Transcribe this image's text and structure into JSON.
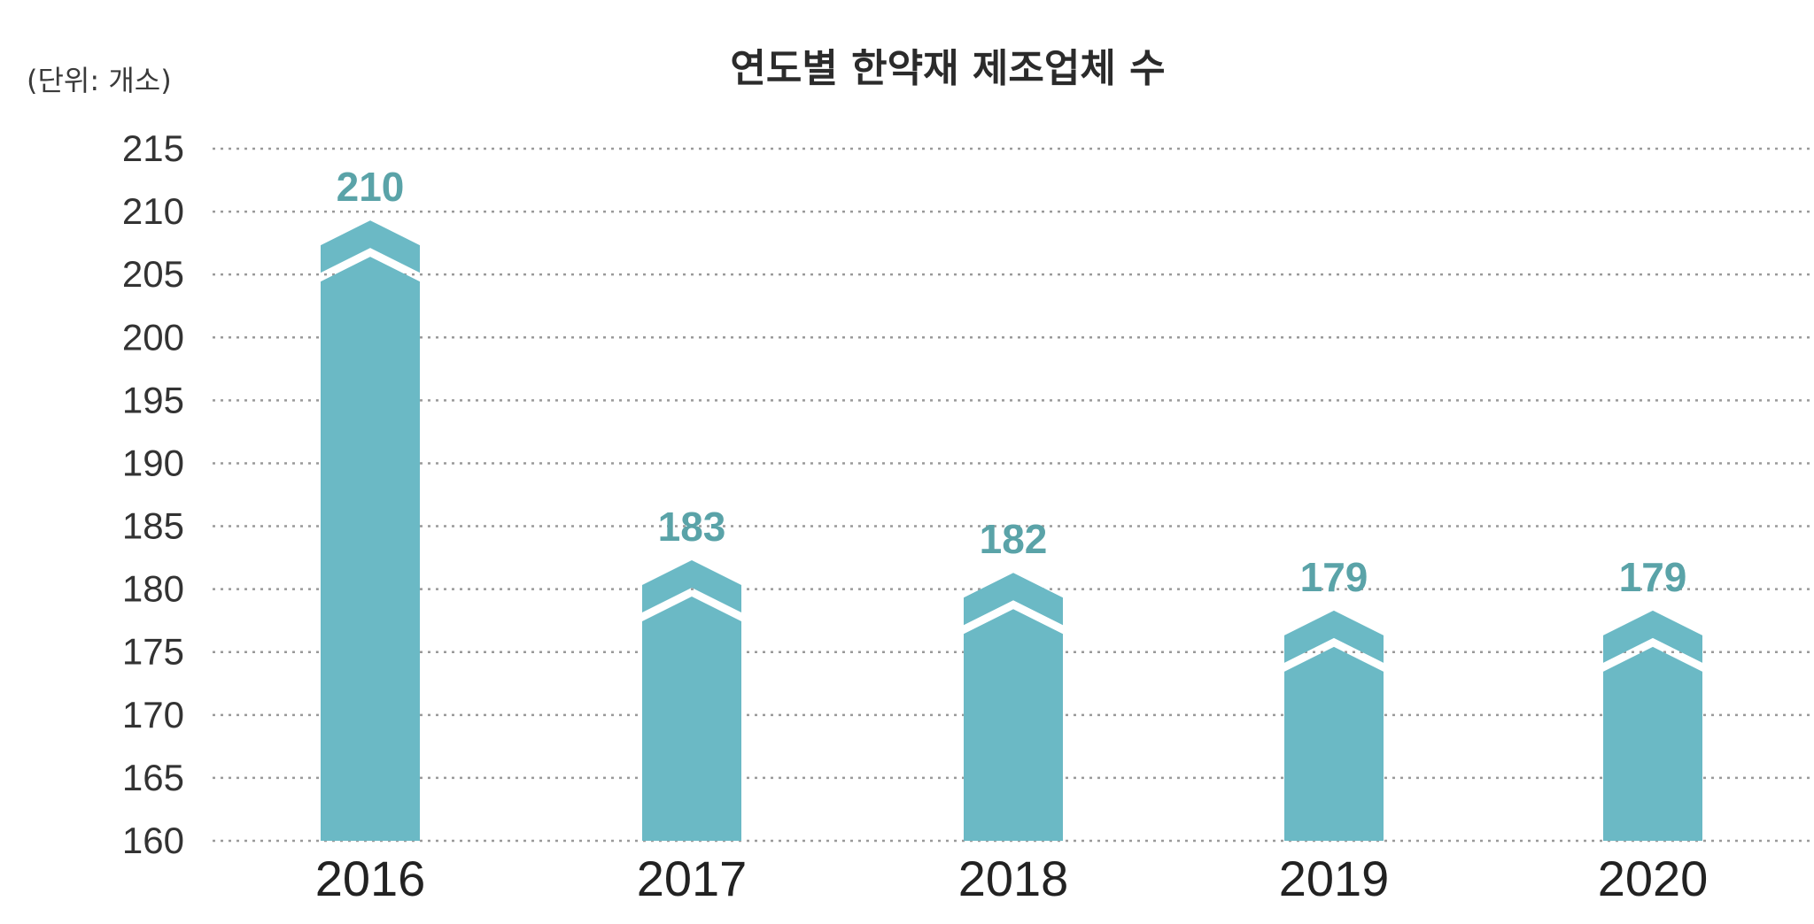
{
  "chart_data": {
    "type": "bar",
    "title": "연도별 한약재 제조업체 수",
    "unit_label": "(단위: 개소)",
    "categories": [
      "2016",
      "2017",
      "2018",
      "2019",
      "2020"
    ],
    "values": [
      210,
      183,
      182,
      179,
      179
    ],
    "ylim": [
      160,
      215
    ],
    "yticks": [
      215,
      210,
      205,
      200,
      195,
      190,
      185,
      180,
      175,
      170,
      165,
      160
    ],
    "grid": true,
    "legend": "none",
    "xlabel": "",
    "ylabel": ""
  },
  "colors": {
    "bar": "#6bb9c5",
    "value_label": "#5aa3a8",
    "background": "#ffffff"
  }
}
